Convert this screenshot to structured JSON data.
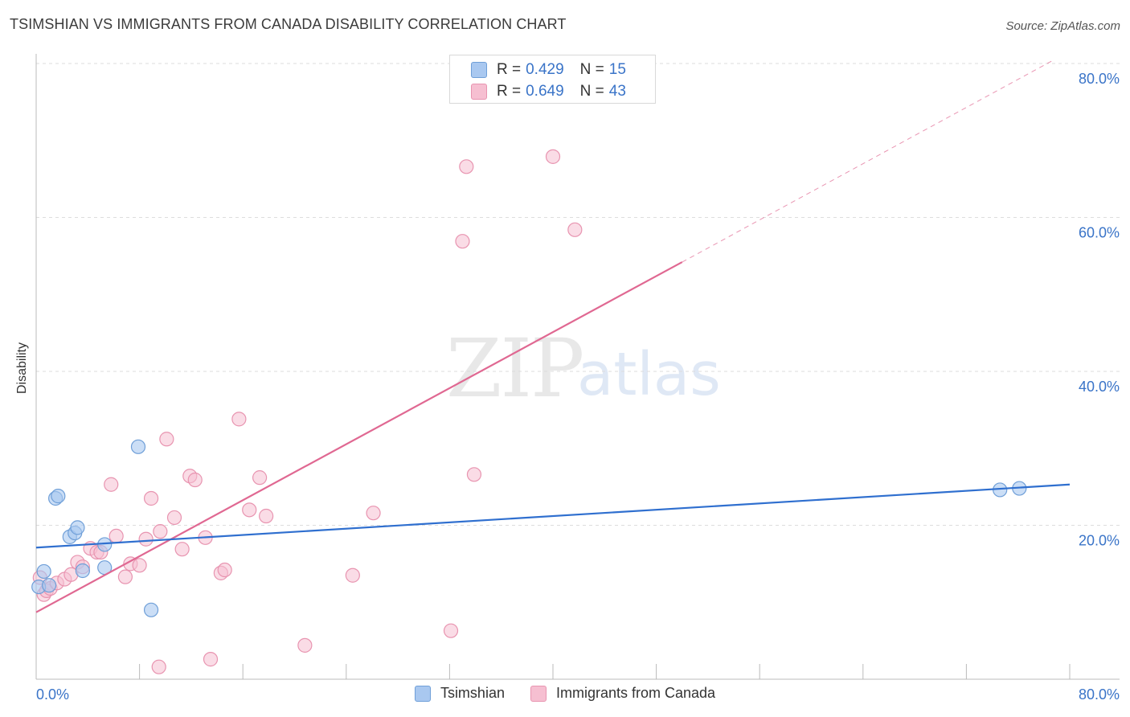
{
  "title": "TSIMSHIAN VS IMMIGRANTS FROM CANADA DISABILITY CORRELATION CHART",
  "source": "Source: ZipAtlas.com",
  "watermark": {
    "zip": "ZIP",
    "atlas": "atlas"
  },
  "legend": {
    "series": [
      {
        "name": "Tsimshian",
        "r_label": "R =",
        "r": "0.429",
        "n_label": "N =",
        "n": "15"
      },
      {
        "name": "Immigrants from Canada",
        "r_label": "R =",
        "r": "0.649",
        "n_label": "N =",
        "n": "43"
      }
    ]
  },
  "colors": {
    "tsimshian_fill": "#a9c8f0",
    "tsimshian_stroke": "#6f9fd8",
    "tsimshian_line": "#2f6fcf",
    "canada_fill": "#f6bfd1",
    "canada_stroke": "#e894b0",
    "canada_line": "#e06892",
    "tick_label": "#3a74c8",
    "grid": "#dddddd"
  },
  "chart_data": {
    "type": "scatter",
    "title": "TSIMSHIAN VS IMMIGRANTS FROM CANADA DISABILITY CORRELATION CHART",
    "xlabel": "",
    "ylabel": "Disability",
    "xlim": [
      0,
      80
    ],
    "ylim": [
      0,
      80
    ],
    "x_tick_labels": [
      "0.0%",
      "80.0%"
    ],
    "y_tick_labels": [
      "20.0%",
      "40.0%",
      "60.0%",
      "80.0%"
    ],
    "y_ticks": [
      20,
      40,
      60,
      80
    ],
    "grid": true,
    "legend_position": "top-center",
    "series": [
      {
        "name": "Tsimshian",
        "points": [
          [
            0.2,
            12.0
          ],
          [
            0.6,
            14.0
          ],
          [
            1.0,
            12.2
          ],
          [
            1.5,
            23.5
          ],
          [
            1.7,
            23.8
          ],
          [
            2.6,
            18.5
          ],
          [
            3.0,
            19.0
          ],
          [
            3.2,
            19.7
          ],
          [
            3.6,
            14.1
          ],
          [
            5.3,
            14.5
          ],
          [
            5.3,
            17.5
          ],
          [
            7.9,
            30.2
          ],
          [
            8.9,
            9.0
          ],
          [
            74.6,
            24.6
          ],
          [
            76.1,
            24.8
          ]
        ],
        "trend": {
          "x0": 0,
          "y0": 17.1,
          "x1": 80,
          "y1": 25.3
        }
      },
      {
        "name": "Immigrants from Canada",
        "points": [
          [
            0.3,
            13.2
          ],
          [
            0.6,
            11.0
          ],
          [
            0.8,
            11.5
          ],
          [
            1.1,
            11.8
          ],
          [
            1.6,
            12.5
          ],
          [
            2.2,
            13.0
          ],
          [
            2.7,
            13.6
          ],
          [
            3.2,
            15.2
          ],
          [
            3.6,
            14.6
          ],
          [
            4.2,
            17.0
          ],
          [
            4.7,
            16.5
          ],
          [
            5.0,
            16.5
          ],
          [
            5.8,
            25.3
          ],
          [
            6.2,
            18.6
          ],
          [
            6.9,
            13.3
          ],
          [
            7.3,
            15.0
          ],
          [
            8.0,
            14.8
          ],
          [
            8.5,
            18.2
          ],
          [
            8.9,
            23.5
          ],
          [
            9.6,
            19.2
          ],
          [
            10.1,
            31.2
          ],
          [
            10.7,
            21.0
          ],
          [
            11.3,
            16.9
          ],
          [
            11.9,
            26.4
          ],
          [
            12.3,
            25.9
          ],
          [
            13.1,
            18.4
          ],
          [
            14.3,
            13.8
          ],
          [
            14.6,
            14.2
          ],
          [
            15.7,
            33.8
          ],
          [
            16.5,
            22.0
          ],
          [
            17.3,
            26.2
          ],
          [
            17.8,
            21.2
          ],
          [
            20.8,
            4.4
          ],
          [
            24.5,
            13.5
          ],
          [
            26.1,
            21.6
          ],
          [
            32.1,
            6.3
          ],
          [
            33.0,
            56.9
          ],
          [
            33.3,
            66.6
          ],
          [
            33.9,
            26.6
          ],
          [
            40.0,
            67.9
          ],
          [
            41.7,
            58.4
          ],
          [
            9.5,
            1.6
          ],
          [
            13.5,
            2.6
          ]
        ],
        "trend": {
          "x0": 0,
          "y0": 8.7,
          "x1": 50,
          "y1": 54.2,
          "dashed_to_x": 78.8,
          "dashed_to_y": 80.5
        }
      }
    ]
  }
}
